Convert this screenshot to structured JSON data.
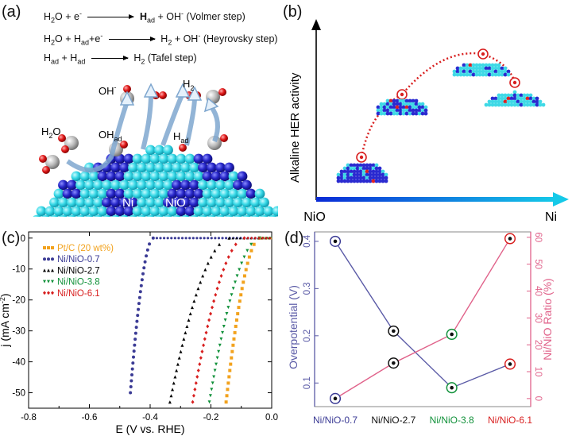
{
  "panel_a": {
    "label": "(a)",
    "equations": [
      {
        "lhs_1": "H",
        "lhs_1_sub": "2",
        "lhs_2": "O + e",
        "lhs_2_sup": "-",
        "rhs_1": "H",
        "rhs_1_sub": "ad",
        "rhs_2": " + OH",
        "rhs_2_sup": "-",
        "note": " (Volmer step)"
      },
      {
        "lhs_1": "H",
        "lhs_1_sub": "2",
        "lhs_2": "O + H",
        "lhs_2_sub": "ad",
        "lhs_3": "+e",
        "lhs_3_sup": "-",
        "rhs_1": "H",
        "rhs_1_sub": "2",
        "rhs_2": " + OH",
        "rhs_2_sup": "-",
        "note": " (Heyrovsky step)"
      },
      {
        "lhs_1": "H",
        "lhs_1_sub": "ad",
        "lhs_2": " + H",
        "lhs_2_sub": "ad",
        "rhs_1": "H",
        "rhs_1_sub": "2",
        "note": "  (Tafel step)"
      }
    ],
    "labels": {
      "oh": "OH",
      "oh_sup": "-",
      "h2": "H",
      "h2_sub": "2",
      "h2o": "H",
      "h2o_sub": "2",
      "h2o_tail": "O",
      "ohad": "OH",
      "ohad_sub": "ad",
      "had": "H",
      "had_sub": "ad",
      "ni": "Ni",
      "nio": "NiO"
    }
  },
  "panel_b": {
    "label": "(b)",
    "y_axis_label": "Alkaline HER activity",
    "x_left": "NiO",
    "x_right": "Ni"
  },
  "panel_c": {
    "label": "(c)",
    "chart_data": {
      "type": "scatter",
      "xlabel": "E (V vs. RHE)",
      "ylabel": "j (mA cm⁻²)",
      "ylabel_main": "j (mA cm",
      "ylabel_sup": "-2",
      "ylabel_tail": ")",
      "xlim": [
        -0.8,
        0.0
      ],
      "ylim": [
        -55,
        2
      ],
      "xticks": [
        -0.8,
        -0.6,
        -0.4,
        -0.2,
        0.0
      ],
      "xtick_labels": [
        "-0.8",
        "-0.6",
        "-0.4",
        "-0.2",
        "0.0"
      ],
      "yticks": [
        0,
        -10,
        -20,
        -30,
        -40,
        -50
      ],
      "ytick_labels": [
        "0",
        "-10",
        "-20",
        "-30",
        "-40",
        "-50"
      ],
      "series": [
        {
          "name": "Pt/C (20 wt%)",
          "color": "#f2a21d",
          "marker": "square",
          "onset": -0.04,
          "end": -0.15
        },
        {
          "name": "Ni/NiO-0.7",
          "color": "#3b3b95",
          "marker": "circle",
          "onset": -0.39,
          "end": -0.465
        },
        {
          "name": "Ni/NiO-2.7",
          "color": "#000000",
          "marker": "triangle-up",
          "onset": -0.14,
          "end": -0.335
        },
        {
          "name": "Ni/NiO-3.8",
          "color": "#11913a",
          "marker": "triangle-down",
          "onset": -0.04,
          "end": -0.205
        },
        {
          "name": "Ni/NiO-6.1",
          "color": "#d81f1f",
          "marker": "diamond",
          "onset": -0.09,
          "end": -0.26
        }
      ]
    }
  },
  "panel_d": {
    "label": "(d)",
    "chart_data": {
      "type": "line",
      "categories": [
        "Ni/NiO-0.7",
        "Ni/NiO-2.7",
        "Ni/NiO-3.8",
        "Ni/NiO-6.1"
      ],
      "category_colors": [
        "#3b3b95",
        "#111111",
        "#11913a",
        "#d81f1f"
      ],
      "ylabel_left": "Overpotential (V)",
      "ylabel_right": "Ni/NiO Ratio (%)",
      "ylim_left": [
        0.05,
        0.42
      ],
      "ylim_right": [
        -3,
        62
      ],
      "yticks_left": [
        0.1,
        0.2,
        0.3,
        0.4
      ],
      "ytick_labels_left": [
        "0.1",
        "0.2",
        "0.3",
        "0.4"
      ],
      "yticks_right": [
        0,
        10,
        20,
        30,
        40,
        50,
        60
      ],
      "ytick_labels_right": [
        "0",
        "10",
        "20",
        "30",
        "40",
        "50",
        "60"
      ],
      "series": [
        {
          "axis": "left",
          "color": "#5a5aa6",
          "values": [
            0.4,
            0.21,
            0.09,
            0.14
          ]
        },
        {
          "axis": "right",
          "color": "#e0628a",
          "values": [
            0.0,
            13.2,
            23.9,
            59.5
          ]
        }
      ],
      "marker_ring_colors_right": [
        "#3b3b95",
        "#111111",
        "#11913a",
        "#d81f1f"
      ],
      "marker_ring_colors_left": [
        "#3b3b95",
        "#111111",
        "#11913a",
        "#d81f1f"
      ]
    }
  }
}
